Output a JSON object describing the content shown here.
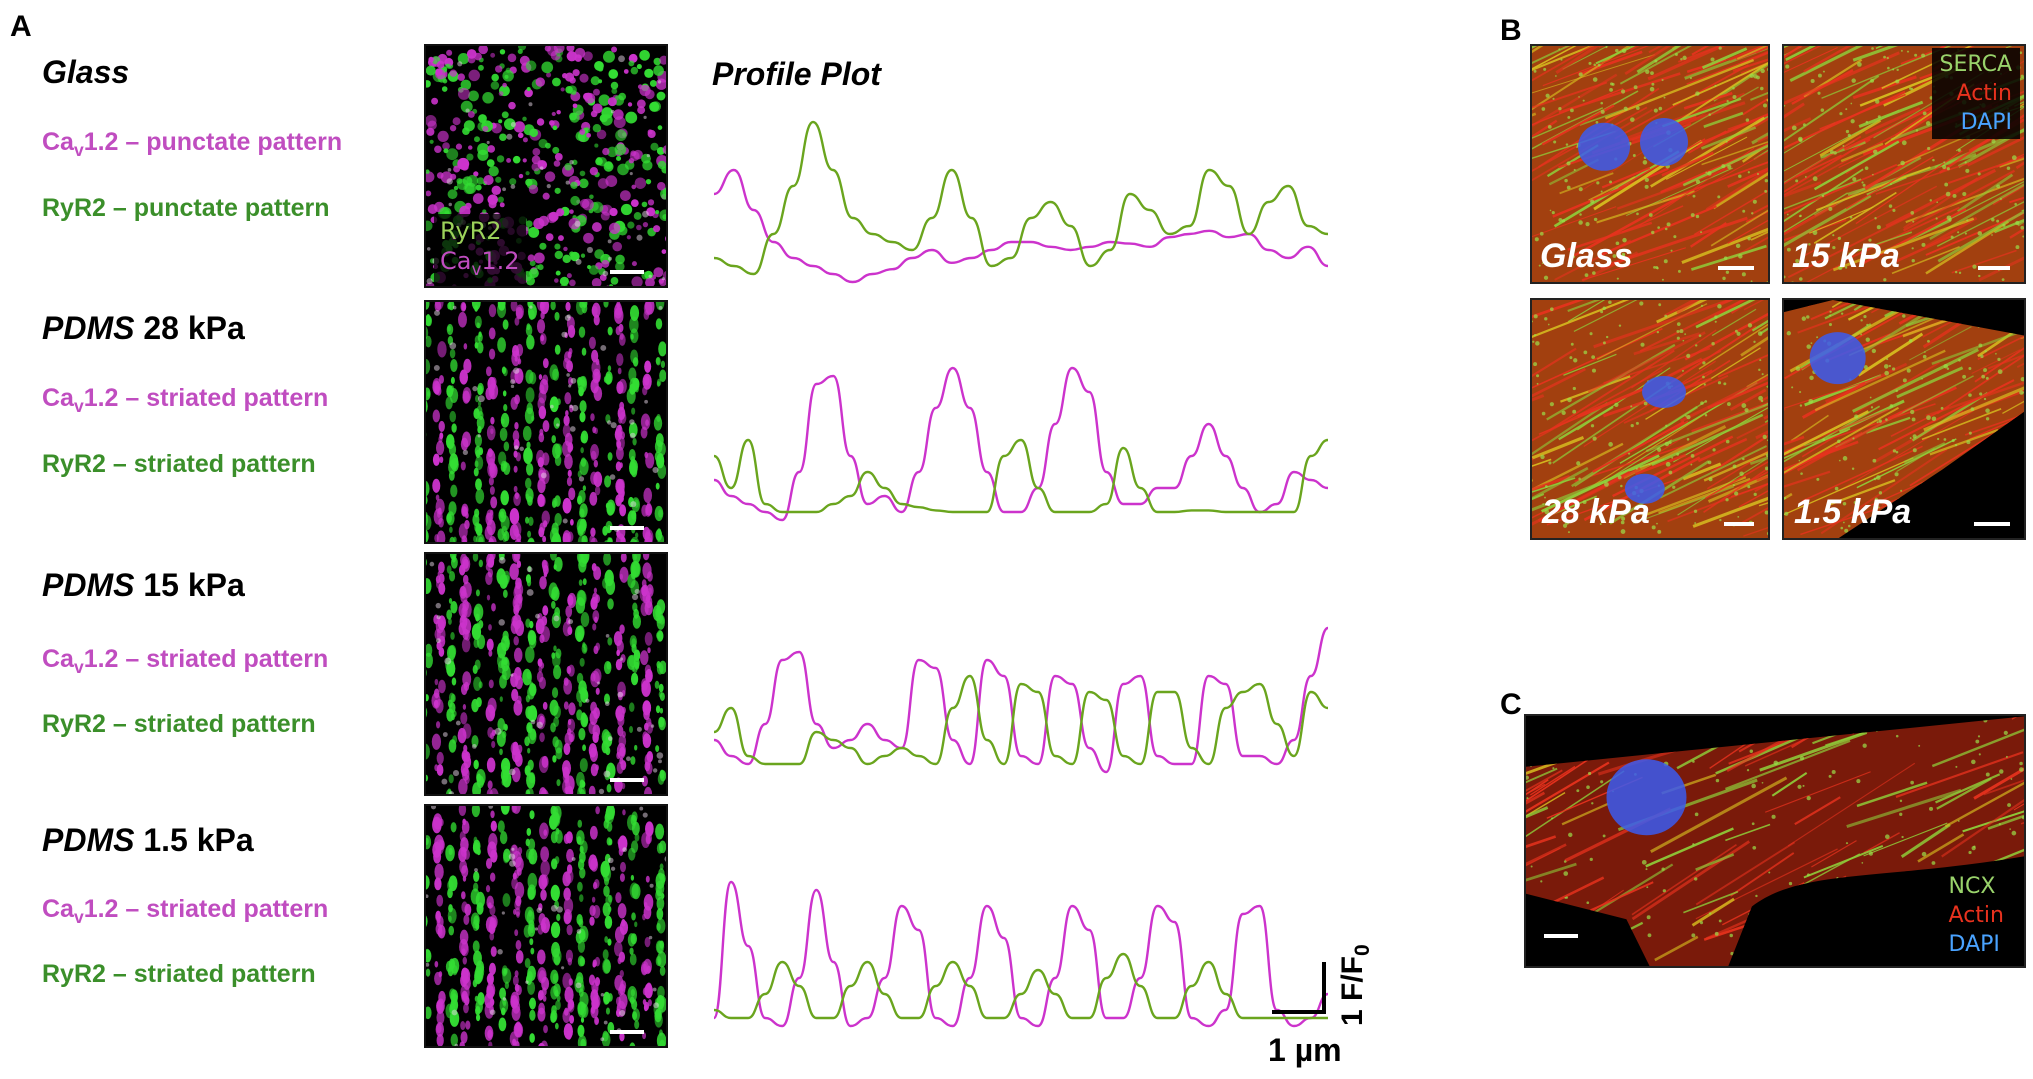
{
  "panels": {
    "a": "A",
    "b": "B",
    "c": "C"
  },
  "profile_plot_title": "Profile Plot",
  "rows": [
    {
      "substrate": "Glass",
      "stiffness": "",
      "cav_label": "Cav1.2 – punctate pattern",
      "ryr_label": "RyR2 – punctate pattern",
      "inset_ryr": "RyR2",
      "inset_cav": "Cav1.2"
    },
    {
      "substrate": "PDMS",
      "stiffness": "28 kPa",
      "cav_label": "Cav1.2 – striated pattern",
      "ryr_label": "RyR2 – striated pattern"
    },
    {
      "substrate": "PDMS",
      "stiffness": "15 kPa",
      "cav_label": "Cav1.2 – striated pattern",
      "ryr_label": "RyR2 – striated pattern"
    },
    {
      "substrate": "PDMS",
      "stiffness": "1.5 kPa",
      "cav_label": "Cav1.2 – striated pattern",
      "ryr_label": "RyR2 – striated pattern"
    }
  ],
  "scale": {
    "x_label": "1 µm",
    "y_label": "1 F/F0"
  },
  "panel_b": {
    "images": [
      "Glass",
      "15 kPa",
      "28 kPa",
      "1.5 kPa"
    ],
    "legend": [
      "SERCA",
      "Actin",
      "DAPI"
    ]
  },
  "panel_c": {
    "legend": [
      "NCX",
      "Actin",
      "DAPI"
    ]
  },
  "colors": {
    "cav": "#cc33cc",
    "ryr": "#6aa51e",
    "cav_text": "#c04dc0",
    "ryr_text": "#3b8f2a",
    "serca": "#99d36b",
    "actin": "#e8321e",
    "dapi": "#4aa3ff"
  },
  "chart_data": {
    "type": "line",
    "title": "Profile Plot",
    "xlabel": "1 µm",
    "ylabel": "1 F/F0",
    "panels": [
      {
        "condition": "Glass",
        "series": [
          {
            "name": "Cav1.2",
            "values": [
              0.55,
              0.7,
              0.45,
              0.25,
              0.15,
              0.1,
              0.05,
              0.0,
              0.05,
              0.08,
              0.15,
              0.2,
              0.12,
              0.15,
              0.2,
              0.25,
              0.25,
              0.22,
              0.2,
              0.22,
              0.25,
              0.24,
              0.22,
              0.28,
              0.3,
              0.32,
              0.28,
              0.3,
              0.2,
              0.15,
              0.22,
              0.1
            ]
          },
          {
            "name": "RyR2",
            "values": [
              0.15,
              0.1,
              0.05,
              0.3,
              0.6,
              1.0,
              0.7,
              0.4,
              0.3,
              0.25,
              0.2,
              0.4,
              0.7,
              0.4,
              0.1,
              0.15,
              0.4,
              0.5,
              0.35,
              0.1,
              0.2,
              0.55,
              0.45,
              0.3,
              0.35,
              0.7,
              0.6,
              0.3,
              0.5,
              0.6,
              0.35,
              0.3
            ]
          }
        ]
      },
      {
        "condition": "PDMS 28 kPa",
        "series": [
          {
            "name": "Cav1.2",
            "values": [
              0.25,
              0.15,
              0.1,
              0.05,
              0.0,
              0.3,
              0.85,
              0.9,
              0.4,
              0.1,
              0.15,
              0.05,
              0.3,
              0.7,
              0.95,
              0.7,
              0.3,
              0.05,
              0.05,
              0.2,
              0.6,
              0.95,
              0.8,
              0.3,
              0.1,
              0.1,
              0.2,
              0.2,
              0.4,
              0.6,
              0.4,
              0.2,
              0.05,
              0.1,
              0.3,
              0.25,
              0.2
            ]
          },
          {
            "name": "RyR2",
            "values": [
              0.4,
              0.2,
              0.5,
              0.1,
              0.05,
              0.05,
              0.05,
              0.1,
              0.15,
              0.3,
              0.2,
              0.1,
              0.08,
              0.06,
              0.05,
              0.05,
              0.05,
              0.4,
              0.5,
              0.2,
              0.05,
              0.05,
              0.05,
              0.1,
              0.45,
              0.2,
              0.05,
              0.05,
              0.06,
              0.06,
              0.05,
              0.05,
              0.05,
              0.05,
              0.05,
              0.4,
              0.5
            ]
          }
        ]
      },
      {
        "condition": "PDMS 15 kPa",
        "series": [
          {
            "name": "Cav1.2",
            "values": [
              0.2,
              0.1,
              0.05,
              0.3,
              0.7,
              0.75,
              0.3,
              0.15,
              0.2,
              0.3,
              0.2,
              0.15,
              0.7,
              0.65,
              0.2,
              0.05,
              0.7,
              0.6,
              0.1,
              0.05,
              0.6,
              0.55,
              0.15,
              0.0,
              0.55,
              0.6,
              0.1,
              0.05,
              0.05,
              0.6,
              0.55,
              0.1,
              0.1,
              0.05,
              0.2,
              0.6,
              0.9
            ]
          },
          {
            "name": "RyR2",
            "values": [
              0.25,
              0.4,
              0.1,
              0.05,
              0.05,
              0.05,
              0.25,
              0.2,
              0.15,
              0.05,
              0.1,
              0.15,
              0.1,
              0.05,
              0.4,
              0.6,
              0.2,
              0.05,
              0.55,
              0.5,
              0.1,
              0.05,
              0.5,
              0.45,
              0.1,
              0.05,
              0.5,
              0.5,
              0.15,
              0.05,
              0.4,
              0.5,
              0.55,
              0.3,
              0.1,
              0.5,
              0.4
            ]
          }
        ]
      },
      {
        "condition": "PDMS 1.5 kPa",
        "series": [
          {
            "name": "Cav1.2",
            "values": [
              0.05,
              0.9,
              0.5,
              0.05,
              0.0,
              0.3,
              0.85,
              0.4,
              0.0,
              0.05,
              0.3,
              0.75,
              0.6,
              0.05,
              0.0,
              0.3,
              0.75,
              0.55,
              0.05,
              0.0,
              0.3,
              0.75,
              0.6,
              0.05,
              0.05,
              0.3,
              0.75,
              0.65,
              0.05,
              0.0,
              0.1,
              0.7,
              0.75,
              0.1,
              0.0,
              0.05,
              0.2
            ]
          },
          {
            "name": "RyR2",
            "values": [
              0.1,
              0.05,
              0.05,
              0.2,
              0.4,
              0.25,
              0.05,
              0.05,
              0.25,
              0.4,
              0.2,
              0.05,
              0.05,
              0.25,
              0.4,
              0.25,
              0.05,
              0.05,
              0.2,
              0.35,
              0.2,
              0.05,
              0.05,
              0.3,
              0.45,
              0.25,
              0.05,
              0.05,
              0.25,
              0.4,
              0.2,
              0.05,
              0.05,
              0.05,
              0.05,
              0.05,
              0.05
            ]
          }
        ]
      }
    ]
  }
}
